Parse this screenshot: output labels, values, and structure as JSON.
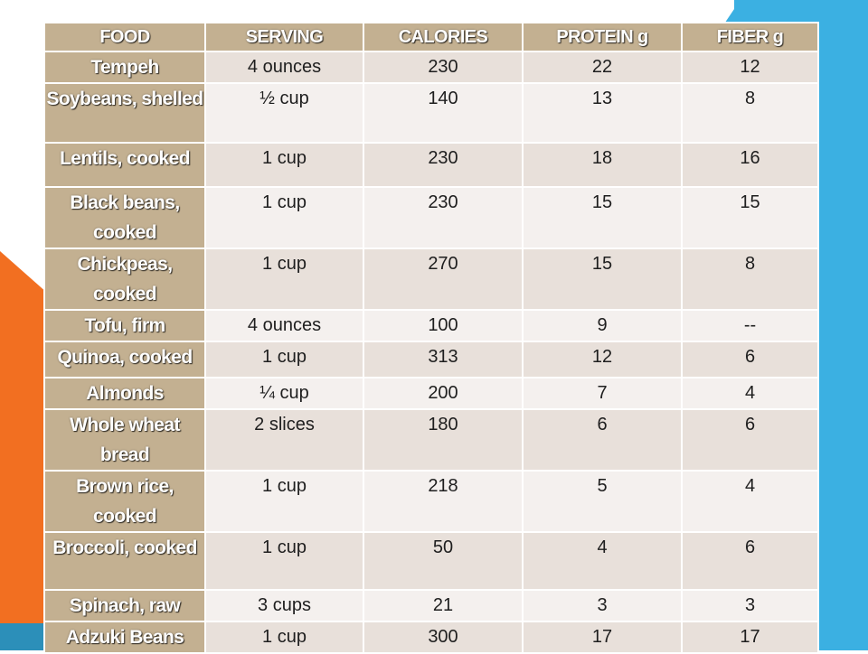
{
  "colors": {
    "header_bg": "#c3b091",
    "row_dark": "#e8e0da",
    "row_light": "#f4f0ee",
    "accent_blue": "#3bb0e2",
    "accent_orange": "#f26f21",
    "accent_teal": "#2c8fb9"
  },
  "table": {
    "headers": [
      "FOOD",
      "SERVING",
      "CALORIES",
      "PROTEIN g",
      "FIBER g"
    ],
    "rows": [
      [
        "Tempeh",
        "4 ounces",
        "230",
        "22",
        "12"
      ],
      [
        "Soybeans, shelled",
        "½ cup",
        "140",
        "13",
        "8"
      ],
      [
        "Lentils, cooked",
        "1  cup",
        "230",
        "18",
        "16"
      ],
      [
        "Black beans, cooked",
        "1 cup",
        "230",
        "15",
        "15"
      ],
      [
        "Chickpeas, cooked",
        "1 cup",
        "270",
        "15",
        "8"
      ],
      [
        "Tofu, firm",
        "4 ounces",
        "100",
        "9",
        "--"
      ],
      [
        "Quinoa, cooked",
        "1 cup",
        "313",
        "12",
        "6"
      ],
      [
        "Almonds",
        "¼ cup",
        "200",
        "7",
        "4"
      ],
      [
        "Whole wheat bread",
        "2 slices",
        "180",
        "6",
        "6"
      ],
      [
        "Brown rice, cooked",
        "1 cup",
        "218",
        "5",
        "4"
      ],
      [
        "Broccoli, cooked",
        "1 cup",
        "50",
        "4",
        "6"
      ],
      [
        "Spinach, raw",
        "3 cups",
        "21",
        "3",
        "3"
      ],
      [
        "Adzuki Beans",
        "1 cup",
        "300",
        "17",
        "17"
      ]
    ]
  }
}
